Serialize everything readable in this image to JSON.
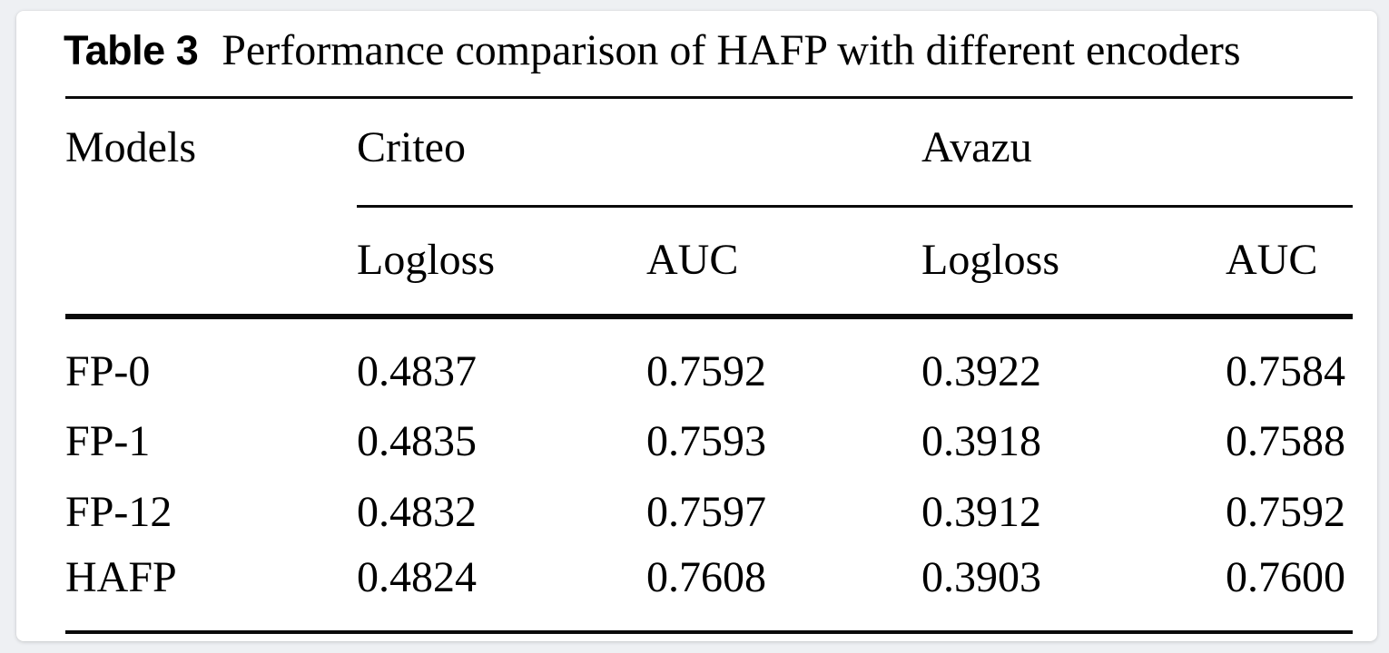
{
  "page": {
    "background_color": "#eef0f3",
    "card_color": "#ffffff",
    "text_color": "#000000"
  },
  "table": {
    "label": "Table 3",
    "caption": "Performance comparison of HAFP with different encoders",
    "models_header": "Models",
    "groups": [
      {
        "label": "Criteo",
        "columns": [
          "Logloss",
          "AUC"
        ]
      },
      {
        "label": "Avazu",
        "columns": [
          "Logloss",
          "AUC"
        ]
      }
    ],
    "rows": [
      {
        "model": "FP-0",
        "values": [
          "0.4837",
          "0.7592",
          "0.3922",
          "0.7584"
        ]
      },
      {
        "model": "FP-1",
        "values": [
          "0.4835",
          "0.7593",
          "0.3918",
          "0.7588"
        ]
      },
      {
        "model": "FP-12",
        "values": [
          "0.4832",
          "0.7597",
          "0.3912",
          "0.7592"
        ]
      },
      {
        "model": "HAFP",
        "values": [
          "0.4824",
          "0.7608",
          "0.3903",
          "0.7600"
        ]
      }
    ]
  }
}
